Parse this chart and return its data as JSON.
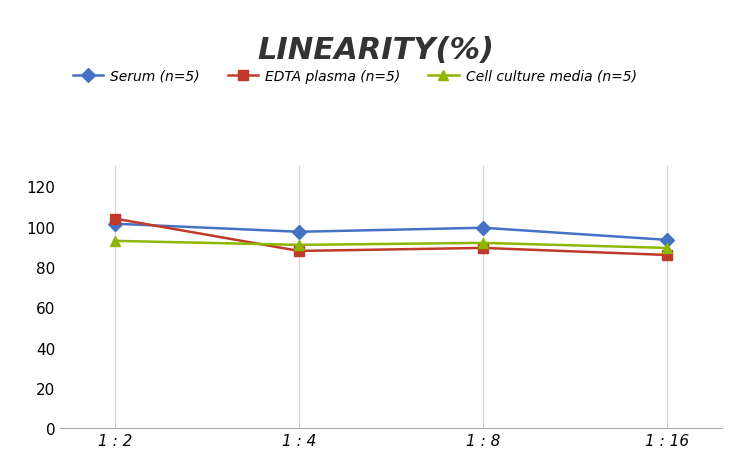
{
  "title": "LINEARITY(%)",
  "title_fontsize": 22,
  "title_fontstyle": "italic",
  "title_fontweight": "bold",
  "title_color": "#333333",
  "x_labels": [
    "1 : 2",
    "1 : 4",
    "1 : 8",
    "1 : 16"
  ],
  "x_positions": [
    0,
    1,
    2,
    3
  ],
  "series": [
    {
      "label": "Serum (n=5)",
      "values": [
        101.5,
        97.5,
        99.5,
        93.5
      ],
      "color": "#4472C4",
      "marker": "D",
      "markersize": 7,
      "linewidth": 1.8
    },
    {
      "label": "EDTA plasma (n=5)",
      "values": [
        104.0,
        88.0,
        89.5,
        86.0
      ],
      "color": "#C0392B",
      "marker": "s",
      "markersize": 7,
      "linewidth": 1.8
    },
    {
      "label": "Cell culture media (n=5)",
      "values": [
        93.0,
        91.0,
        92.0,
        89.5
      ],
      "color": "#8DB600",
      "marker": "^",
      "markersize": 7,
      "linewidth": 1.8
    }
  ],
  "ylim": [
    0,
    130
  ],
  "yticks": [
    0,
    20,
    40,
    60,
    80,
    100,
    120
  ],
  "background_color": "#ffffff",
  "grid_color": "#d0d0d0",
  "legend_fontsize": 10,
  "axis_fontsize": 11
}
